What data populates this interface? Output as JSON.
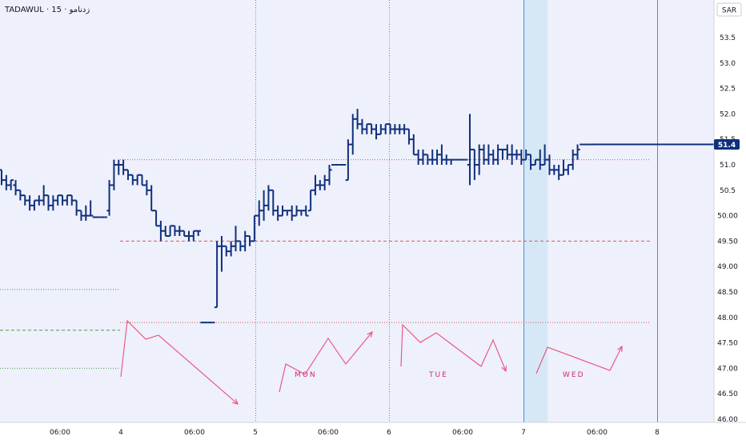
{
  "header": {
    "symbol_title": "TADAWUL · 15 · زدنامو"
  },
  "price_axis": {
    "currency": "SAR",
    "ticks": [
      "53.5",
      "53.0",
      "52.5",
      "52.0",
      "51.5",
      "51.0",
      "50.5",
      "50.00",
      "49.50",
      "49.00",
      "48.50",
      "48.00",
      "47.50",
      "47.00",
      "46.50",
      "46.00"
    ],
    "current_price_label": "51.4"
  },
  "time_axis": {
    "labels": [
      "06:00",
      "4",
      "06:00",
      "5",
      "06:00",
      "6",
      "06:00",
      "7",
      "06:00",
      "8"
    ]
  },
  "day_labels": [
    "MON",
    "TUE",
    "WED"
  ],
  "colors": {
    "background": "#eef0fb",
    "ohlc": "#10307d",
    "current_price": "#10307d",
    "annotation": "#e8507a",
    "red_level": "#e05656",
    "green_level": "#4c9a4c",
    "session_line": "#4a8ed8",
    "highlight_band": "#d6e8f6"
  },
  "chart_data": {
    "type": "ohlc",
    "title": "",
    "ylim": [
      46.0,
      53.75
    ],
    "grid": false,
    "current_price": 51.4,
    "levels": [
      {
        "price": 51.1,
        "style": "dotted",
        "color": "red"
      },
      {
        "price": 49.5,
        "style": "dashed",
        "color": "red"
      },
      {
        "price": 47.9,
        "style": "dotted",
        "color": "red"
      },
      {
        "price": 48.55,
        "style": "dotted",
        "color": "green"
      },
      {
        "price": 47.75,
        "style": "dashed",
        "color": "green"
      },
      {
        "price": 47.0,
        "style": "dotted",
        "color": "green"
      }
    ],
    "bars": [
      [
        50.9,
        50.9,
        50.6,
        50.7
      ],
      [
        50.7,
        50.8,
        50.5,
        50.6
      ],
      [
        50.6,
        50.7,
        50.5,
        50.7
      ],
      [
        50.6,
        50.7,
        50.4,
        50.5
      ],
      [
        50.5,
        50.5,
        50.3,
        50.4
      ],
      [
        50.4,
        50.4,
        50.2,
        50.3
      ],
      [
        50.3,
        50.4,
        50.1,
        50.2
      ],
      [
        50.2,
        50.3,
        50.1,
        50.3
      ],
      [
        50.3,
        50.4,
        50.2,
        50.3
      ],
      [
        50.3,
        50.6,
        50.2,
        50.4
      ],
      [
        50.4,
        50.4,
        50.1,
        50.2
      ],
      [
        50.2,
        50.4,
        50.1,
        50.3
      ],
      [
        50.3,
        50.4,
        50.2,
        50.4
      ],
      [
        50.4,
        50.4,
        50.2,
        50.3
      ],
      [
        50.3,
        50.4,
        50.2,
        50.4
      ],
      [
        50.4,
        50.4,
        50.2,
        50.3
      ],
      [
        50.3,
        50.3,
        50.0,
        50.1
      ],
      [
        50.1,
        50.1,
        49.9,
        50.0
      ],
      [
        50.0,
        50.2,
        49.9,
        50.0
      ],
      [
        50.0,
        50.3,
        50.0,
        50.0
      ],
      [
        49.97,
        49.97,
        49.97,
        49.97
      ],
      [
        49.97,
        49.97,
        49.97,
        49.97
      ],
      [
        49.97,
        49.97,
        49.97,
        49.97
      ],
      [
        50.1,
        50.7,
        50.0,
        50.6
      ],
      [
        50.6,
        51.1,
        50.5,
        51.0
      ],
      [
        51.0,
        51.1,
        50.8,
        51.0
      ],
      [
        51.0,
        51.1,
        50.8,
        50.9
      ],
      [
        50.9,
        50.9,
        50.7,
        50.8
      ],
      [
        50.8,
        50.8,
        50.6,
        50.7
      ],
      [
        50.7,
        50.8,
        50.6,
        50.8
      ],
      [
        50.8,
        50.8,
        50.6,
        50.6
      ],
      [
        50.6,
        50.7,
        50.4,
        50.5
      ],
      [
        50.5,
        50.6,
        50.1,
        50.1
      ],
      [
        50.1,
        50.1,
        49.8,
        49.8
      ],
      [
        49.8,
        49.9,
        49.5,
        49.7
      ],
      [
        49.7,
        49.8,
        49.6,
        49.6
      ],
      [
        49.6,
        49.8,
        49.6,
        49.8
      ],
      [
        49.8,
        49.8,
        49.6,
        49.7
      ],
      [
        49.7,
        49.8,
        49.6,
        49.7
      ],
      [
        49.7,
        49.7,
        49.6,
        49.6
      ],
      [
        49.6,
        49.7,
        49.5,
        49.6
      ],
      [
        49.6,
        49.7,
        49.5,
        49.7
      ],
      [
        49.7,
        49.7,
        49.6,
        49.7
      ],
      [
        47.9,
        47.9,
        47.9,
        47.9
      ],
      [
        47.9,
        47.9,
        47.9,
        47.9
      ],
      [
        47.9,
        47.9,
        47.9,
        47.9
      ],
      [
        48.2,
        49.5,
        48.2,
        49.4
      ],
      [
        49.4,
        49.6,
        48.9,
        49.4
      ],
      [
        49.4,
        49.4,
        49.2,
        49.3
      ],
      [
        49.3,
        49.5,
        49.2,
        49.4
      ],
      [
        49.4,
        49.8,
        49.3,
        49.5
      ],
      [
        49.5,
        49.5,
        49.3,
        49.4
      ],
      [
        49.4,
        49.7,
        49.3,
        49.6
      ],
      [
        49.6,
        49.6,
        49.4,
        49.5
      ],
      [
        49.5,
        50.0,
        49.5,
        50.0
      ],
      [
        50.0,
        50.3,
        49.8,
        50.1
      ],
      [
        50.1,
        50.5,
        49.9,
        50.2
      ],
      [
        50.2,
        50.6,
        50.1,
        50.5
      ],
      [
        50.5,
        50.5,
        50.0,
        50.1
      ],
      [
        50.1,
        50.2,
        49.9,
        50.0
      ],
      [
        50.0,
        50.2,
        50.0,
        50.1
      ],
      [
        50.1,
        50.1,
        50.0,
        50.1
      ],
      [
        50.1,
        50.2,
        49.9,
        50.0
      ],
      [
        50.0,
        50.2,
        50.0,
        50.1
      ],
      [
        50.1,
        50.1,
        50.0,
        50.1
      ],
      [
        50.1,
        50.2,
        50.0,
        50.0
      ],
      [
        50.1,
        50.5,
        50.1,
        50.5
      ],
      [
        50.5,
        50.8,
        50.4,
        50.6
      ],
      [
        50.6,
        50.7,
        50.5,
        50.6
      ],
      [
        50.6,
        50.8,
        50.5,
        50.7
      ],
      [
        50.7,
        51.0,
        50.6,
        50.9
      ],
      [
        51.0,
        51.0,
        51.0,
        51.0
      ],
      [
        51.0,
        51.0,
        51.0,
        51.0
      ],
      [
        51.0,
        51.0,
        51.0,
        51.0
      ],
      [
        50.7,
        51.5,
        50.7,
        51.4
      ],
      [
        51.4,
        52.0,
        51.2,
        51.9
      ],
      [
        51.9,
        52.1,
        51.7,
        51.8
      ],
      [
        51.8,
        51.9,
        51.6,
        51.7
      ],
      [
        51.7,
        51.8,
        51.6,
        51.8
      ],
      [
        51.8,
        51.8,
        51.6,
        51.7
      ],
      [
        51.7,
        51.8,
        51.5,
        51.6
      ],
      [
        51.6,
        51.8,
        51.6,
        51.7
      ],
      [
        51.7,
        51.8,
        51.6,
        51.8
      ],
      [
        51.8,
        51.8,
        51.6,
        51.7
      ],
      [
        51.7,
        51.8,
        51.6,
        51.7
      ],
      [
        51.7,
        51.8,
        51.6,
        51.7
      ],
      [
        51.7,
        51.8,
        51.6,
        51.7
      ],
      [
        51.7,
        51.7,
        51.4,
        51.5
      ],
      [
        51.5,
        51.6,
        51.2,
        51.2
      ],
      [
        51.2,
        51.3,
        51.0,
        51.1
      ],
      [
        51.1,
        51.3,
        51.0,
        51.2
      ],
      [
        51.2,
        51.2,
        51.0,
        51.1
      ],
      [
        51.1,
        51.3,
        51.0,
        51.1
      ],
      [
        51.1,
        51.3,
        51.0,
        51.2
      ],
      [
        51.2,
        51.4,
        51.0,
        51.1
      ],
      [
        51.1,
        51.2,
        51.0,
        51.1
      ],
      [
        51.1,
        51.1,
        51.0,
        51.1
      ],
      [
        51.1,
        51.1,
        51.1,
        51.1
      ],
      [
        51.1,
        51.1,
        51.1,
        51.1
      ],
      [
        51.1,
        51.1,
        51.1,
        51.1
      ],
      [
        51.0,
        52.0,
        50.6,
        51.3
      ],
      [
        51.3,
        51.3,
        50.7,
        51.0
      ],
      [
        51.0,
        51.4,
        50.8,
        51.3
      ],
      [
        51.3,
        51.4,
        51.0,
        51.1
      ],
      [
        51.1,
        51.4,
        51.0,
        51.2
      ],
      [
        51.2,
        51.3,
        51.0,
        51.1
      ],
      [
        51.1,
        51.4,
        51.0,
        51.3
      ],
      [
        51.3,
        51.3,
        51.1,
        51.3
      ],
      [
        51.3,
        51.4,
        51.1,
        51.2
      ],
      [
        51.2,
        51.4,
        51.0,
        51.2
      ],
      [
        51.2,
        51.3,
        51.1,
        51.2
      ],
      [
        51.2,
        51.3,
        51.0,
        51.1
      ],
      [
        51.1,
        51.3,
        51.1,
        51.2
      ],
      [
        51.2,
        51.2,
        50.9,
        51.0
      ],
      [
        51.0,
        51.1,
        51.0,
        51.1
      ],
      [
        51.1,
        51.3,
        50.9,
        51.0
      ],
      [
        51.0,
        51.4,
        51.0,
        51.1
      ],
      [
        51.1,
        51.2,
        50.8,
        50.9
      ],
      [
        50.9,
        51.0,
        50.8,
        50.9
      ],
      [
        50.9,
        51.0,
        50.7,
        50.8
      ],
      [
        50.8,
        51.1,
        50.8,
        50.9
      ],
      [
        50.9,
        51.0,
        50.8,
        51.0
      ],
      [
        51.0,
        51.3,
        50.9,
        51.2
      ],
      [
        51.2,
        51.4,
        51.1,
        51.3
      ],
      [
        51.4,
        51.4,
        51.4,
        51.4
      ],
      [
        51.4,
        51.4,
        51.4,
        51.4
      ],
      [
        51.4,
        51.4,
        51.4,
        51.4
      ]
    ]
  }
}
